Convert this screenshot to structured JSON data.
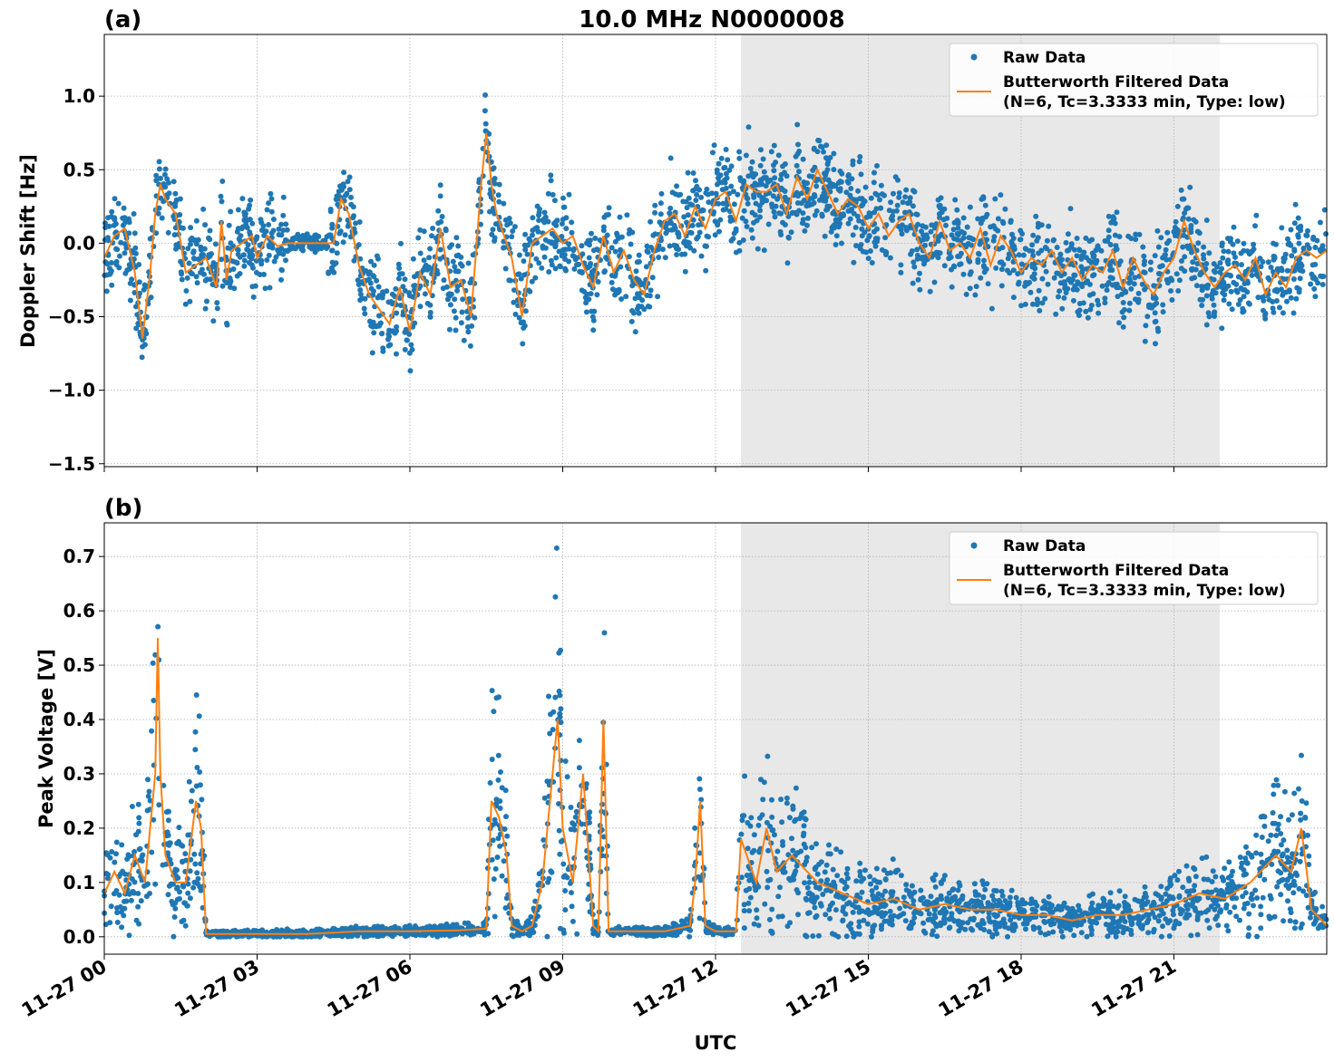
{
  "figure": {
    "title": "10.0 MHz N0000008",
    "xlabel": "UTC",
    "colors": {
      "raw": "#1f77b4",
      "filtered": "#ff7f0e",
      "shade": "#e8e8e8",
      "grid": "#b0b0b0"
    }
  },
  "legend": {
    "raw_label": "Raw Data",
    "filtered_label_line1": "Butterworth Filtered Data",
    "filtered_label_line2": "(N=6, Tc=3.3333 min, Type: low)"
  },
  "chart_data": [
    {
      "type": "scatter",
      "panel_label": "(a)",
      "ylabel": "Doppler Shift [Hz]",
      "xlim_hours": [
        0,
        24
      ],
      "ylim": [
        -1.52,
        1.42
      ],
      "yticks": [
        -1.5,
        -1.0,
        -0.5,
        0.0,
        0.5,
        1.0
      ],
      "ytick_labels": [
        "−1.5",
        "−1.0",
        "−0.5",
        "0.0",
        "0.5",
        "1.0"
      ],
      "shaded_hours": [
        12.5,
        21.9
      ],
      "grid": true,
      "legend_position": "upper right",
      "series": [
        {
          "name": "Butterworth Filtered Data",
          "x_hours": [
            0.0,
            0.2,
            0.4,
            0.6,
            0.75,
            0.9,
            1.0,
            1.1,
            1.2,
            1.4,
            1.6,
            1.8,
            2.0,
            2.2,
            2.3,
            2.4,
            2.5,
            2.7,
            2.9,
            3.0,
            3.2,
            3.4,
            3.6,
            4.0,
            4.5,
            4.65,
            4.8,
            5.0,
            5.2,
            5.4,
            5.6,
            5.8,
            6.0,
            6.2,
            6.4,
            6.6,
            6.8,
            7.0,
            7.2,
            7.4,
            7.5,
            7.6,
            7.7,
            7.8,
            8.0,
            8.2,
            8.4,
            8.6,
            8.8,
            9.0,
            9.2,
            9.4,
            9.6,
            9.8,
            10.0,
            10.2,
            10.4,
            10.6,
            10.8,
            11.0,
            11.2,
            11.4,
            11.6,
            11.8,
            12.0,
            12.2,
            12.4,
            12.6,
            12.8,
            13.0,
            13.2,
            13.4,
            13.6,
            13.8,
            14.0,
            14.2,
            14.4,
            14.6,
            14.8,
            15.0,
            15.2,
            15.4,
            15.6,
            15.8,
            16.0,
            16.2,
            16.4,
            16.6,
            16.8,
            17.0,
            17.2,
            17.4,
            17.6,
            17.8,
            18.0,
            18.2,
            18.4,
            18.6,
            18.8,
            19.0,
            19.2,
            19.4,
            19.6,
            19.8,
            20.0,
            20.2,
            20.4,
            20.6,
            20.8,
            21.0,
            21.2,
            21.4,
            21.6,
            21.8,
            22.0,
            22.2,
            22.4,
            22.6,
            22.8,
            23.0,
            23.2,
            23.4,
            23.6,
            23.8,
            24.0
          ],
          "y": [
            -0.1,
            0.05,
            0.1,
            -0.2,
            -0.65,
            -0.2,
            0.2,
            0.4,
            0.3,
            0.2,
            -0.2,
            -0.15,
            -0.1,
            -0.3,
            0.15,
            -0.25,
            -0.05,
            0.0,
            0.05,
            -0.1,
            0.05,
            -0.02,
            0.0,
            0.0,
            0.0,
            0.3,
            0.2,
            -0.15,
            -0.35,
            -0.45,
            -0.55,
            -0.3,
            -0.6,
            -0.2,
            -0.35,
            0.1,
            -0.3,
            -0.25,
            -0.5,
            0.4,
            0.75,
            0.4,
            0.2,
            0.1,
            -0.1,
            -0.5,
            0.0,
            0.05,
            0.1,
            0.0,
            0.05,
            -0.15,
            -0.3,
            0.05,
            -0.2,
            -0.05,
            -0.25,
            -0.35,
            -0.05,
            0.15,
            0.2,
            0.05,
            0.25,
            0.1,
            0.3,
            0.35,
            0.15,
            0.4,
            0.35,
            0.35,
            0.4,
            0.2,
            0.45,
            0.3,
            0.5,
            0.35,
            0.2,
            0.3,
            0.25,
            0.1,
            0.2,
            0.05,
            0.15,
            0.2,
            0.0,
            -0.1,
            0.15,
            -0.05,
            0.0,
            -0.1,
            0.1,
            -0.15,
            0.05,
            -0.05,
            -0.2,
            -0.1,
            -0.15,
            -0.05,
            -0.2,
            -0.1,
            -0.25,
            -0.15,
            -0.2,
            -0.05,
            -0.3,
            -0.1,
            -0.25,
            -0.35,
            -0.2,
            -0.1,
            0.15,
            -0.05,
            -0.2,
            -0.3,
            -0.2,
            -0.15,
            -0.25,
            -0.1,
            -0.35,
            -0.2,
            -0.3,
            -0.1,
            -0.05,
            -0.1,
            -0.05
          ]
        }
      ]
    },
    {
      "type": "scatter",
      "panel_label": "(b)",
      "ylabel": "Peak Voltage [V]",
      "xlim_hours": [
        0,
        24
      ],
      "ylim": [
        -0.032,
        0.762
      ],
      "yticks": [
        0.0,
        0.1,
        0.2,
        0.3,
        0.4,
        0.5,
        0.6,
        0.7
      ],
      "ytick_labels": [
        "0.0",
        "0.1",
        "0.2",
        "0.3",
        "0.4",
        "0.5",
        "0.6",
        "0.7"
      ],
      "xtick_labels": [
        "11-27 00",
        "11-27 03",
        "11-27 06",
        "11-27 09",
        "11-27 12",
        "11-27 15",
        "11-27 18",
        "11-27 21"
      ],
      "shaded_hours": [
        12.5,
        21.9
      ],
      "grid": true,
      "legend_position": "upper right",
      "series": [
        {
          "name": "Butterworth Filtered Data",
          "x_hours": [
            0.0,
            0.2,
            0.4,
            0.6,
            0.8,
            1.0,
            1.05,
            1.1,
            1.2,
            1.4,
            1.6,
            1.8,
            1.9,
            2.0,
            2.1,
            3.0,
            4.0,
            5.0,
            6.0,
            7.0,
            7.5,
            7.6,
            7.75,
            7.9,
            8.0,
            8.2,
            8.4,
            8.6,
            8.8,
            8.9,
            9.0,
            9.2,
            9.4,
            9.6,
            9.7,
            9.8,
            9.9,
            10.0,
            11.0,
            11.5,
            11.6,
            11.7,
            11.8,
            12.0,
            12.4,
            12.5,
            12.8,
            13.0,
            13.2,
            13.5,
            14.0,
            14.5,
            15.0,
            15.5,
            16.0,
            16.5,
            17.0,
            17.5,
            18.0,
            18.5,
            19.0,
            19.5,
            20.0,
            20.5,
            21.0,
            21.5,
            22.0,
            22.5,
            23.0,
            23.3,
            23.5,
            23.7,
            24.0
          ],
          "y": [
            0.08,
            0.12,
            0.08,
            0.15,
            0.1,
            0.3,
            0.55,
            0.3,
            0.15,
            0.1,
            0.1,
            0.25,
            0.2,
            0.005,
            0.005,
            0.005,
            0.005,
            0.01,
            0.01,
            0.012,
            0.015,
            0.25,
            0.22,
            0.15,
            0.02,
            0.01,
            0.02,
            0.1,
            0.3,
            0.4,
            0.2,
            0.1,
            0.3,
            0.02,
            0.01,
            0.4,
            0.01,
            0.01,
            0.01,
            0.02,
            0.1,
            0.25,
            0.02,
            0.01,
            0.01,
            0.18,
            0.1,
            0.2,
            0.12,
            0.15,
            0.1,
            0.08,
            0.06,
            0.07,
            0.05,
            0.06,
            0.05,
            0.05,
            0.04,
            0.04,
            0.03,
            0.04,
            0.04,
            0.05,
            0.06,
            0.08,
            0.07,
            0.1,
            0.15,
            0.12,
            0.2,
            0.05,
            0.02
          ]
        }
      ]
    }
  ]
}
